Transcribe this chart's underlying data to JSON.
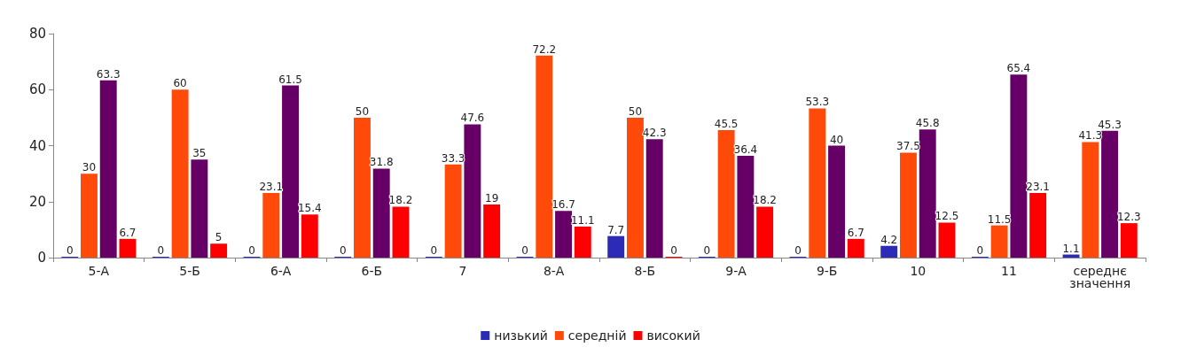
{
  "chart_data": {
    "type": "bar",
    "categories": [
      "5-А",
      "5-Б",
      "6-А",
      "6-Б",
      "7",
      "8-А",
      "8-Б",
      "9-А",
      "9-Б",
      "10",
      "11",
      "середнє значення"
    ],
    "series": [
      {
        "name": "низький",
        "color": "#2b2bb8",
        "values": [
          0,
          0,
          0,
          0,
          0,
          0,
          7.7,
          0,
          0,
          4.2,
          0,
          1.1
        ]
      },
      {
        "name": "середній",
        "color": "#ff4a0a",
        "values": [
          30,
          60,
          23.1,
          50,
          33.3,
          72.2,
          50,
          45.5,
          53.3,
          37.5,
          11.5,
          41.3
        ]
      },
      {
        "color": "#660066",
        "values": [
          63.3,
          35,
          61.5,
          31.8,
          47.6,
          16.7,
          42.3,
          36.4,
          40,
          45.8,
          65.4,
          45.3
        ]
      },
      {
        "name": "високий",
        "color": "#ff0000",
        "values": [
          6.7,
          5,
          15.4,
          18.2,
          19,
          11.1,
          0,
          18.2,
          6.7,
          12.5,
          23.1,
          12.3
        ]
      }
    ],
    "ylim": [
      0,
      80
    ],
    "yticks": [
      0,
      20,
      40,
      60,
      80
    ],
    "grid": false,
    "legend": "bottom",
    "data_labels": true
  }
}
